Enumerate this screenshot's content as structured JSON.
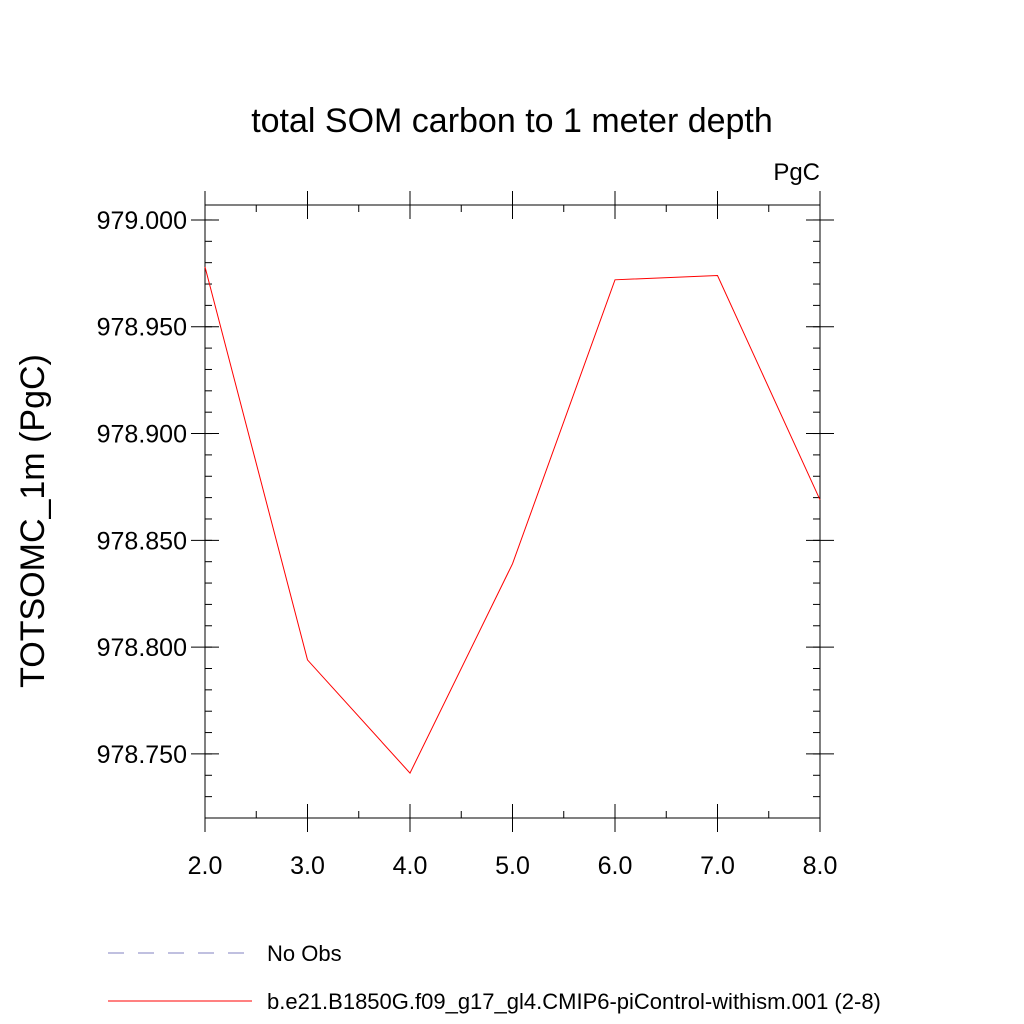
{
  "chart_data": {
    "type": "line",
    "title": "total SOM carbon to 1 meter depth",
    "units_label": "PgC",
    "ylabel": "TOTSOMC_1m  (PgC)",
    "xlabel": "",
    "xlim": [
      2.0,
      8.0
    ],
    "ylim": [
      978.72,
      979.007
    ],
    "x_ticks": [
      2.0,
      3.0,
      4.0,
      5.0,
      6.0,
      7.0,
      8.0
    ],
    "x_tick_labels": [
      "2.0",
      "3.0",
      "4.0",
      "5.0",
      "6.0",
      "7.0",
      "8.0"
    ],
    "y_ticks": [
      979.0,
      978.95,
      978.9,
      978.85,
      978.8,
      978.75
    ],
    "y_tick_labels": [
      "979.000",
      "978.950",
      "978.900",
      "978.850",
      "978.800",
      "978.750"
    ],
    "y_minor_step": 0.01,
    "x_minor_step": 0.5,
    "series": [
      {
        "name": "b.e21.B1850G.f09_g17_gl4.CMIP6-piControl-withism.001 (2-8)",
        "color": "#ff0000",
        "style": "solid",
        "x": [
          2.0,
          3.0,
          4.0,
          5.0,
          6.0,
          7.0,
          8.0
        ],
        "y": [
          978.978,
          978.794,
          978.741,
          978.839,
          978.972,
          978.974,
          978.869
        ]
      }
    ],
    "legend": [
      {
        "label": "No Obs",
        "color": "#8080c0",
        "style": "dashed"
      },
      {
        "label": "b.e21.B1850G.f09_g17_gl4.CMIP6-piControl-withism.001 (2-8)",
        "color": "#ff0000",
        "style": "solid"
      }
    ]
  }
}
